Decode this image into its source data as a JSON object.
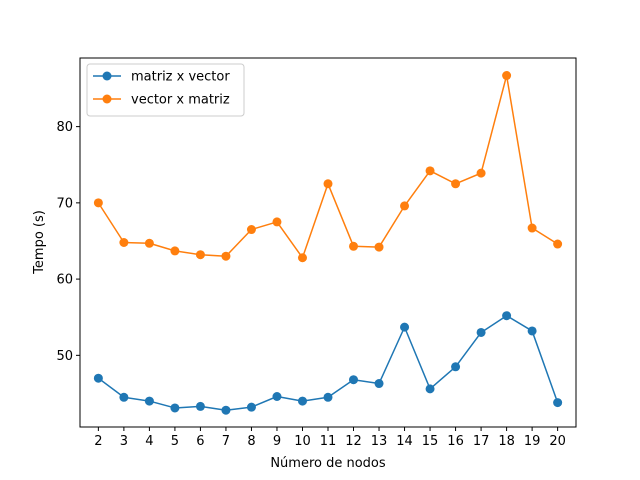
{
  "chart_data": {
    "type": "line",
    "title": "",
    "xlabel": "Número de nodos",
    "ylabel": "Tempo (s)",
    "x": [
      2,
      3,
      4,
      5,
      6,
      7,
      8,
      9,
      10,
      11,
      12,
      13,
      14,
      15,
      16,
      17,
      18,
      19,
      20
    ],
    "xlim": [
      1.28,
      20.72
    ],
    "ylim": [
      40.6,
      89.0
    ],
    "yticks": [
      50,
      60,
      70,
      80
    ],
    "grid": false,
    "legend_position": "top-left",
    "series": [
      {
        "name": "matriz x vector",
        "color": "#1f77b4",
        "values": [
          47.0,
          44.5,
          44.0,
          43.1,
          43.3,
          42.8,
          43.2,
          44.6,
          44.0,
          44.5,
          46.8,
          46.3,
          53.7,
          45.6,
          48.5,
          53.0,
          55.2,
          53.2,
          43.8
        ]
      },
      {
        "name": "vector x matriz",
        "color": "#ff7f0e",
        "values": [
          70.0,
          64.8,
          64.7,
          63.7,
          63.2,
          63.0,
          66.5,
          67.5,
          62.8,
          72.5,
          64.3,
          64.2,
          69.6,
          74.2,
          72.5,
          73.9,
          86.7,
          66.7,
          64.6
        ]
      }
    ]
  }
}
